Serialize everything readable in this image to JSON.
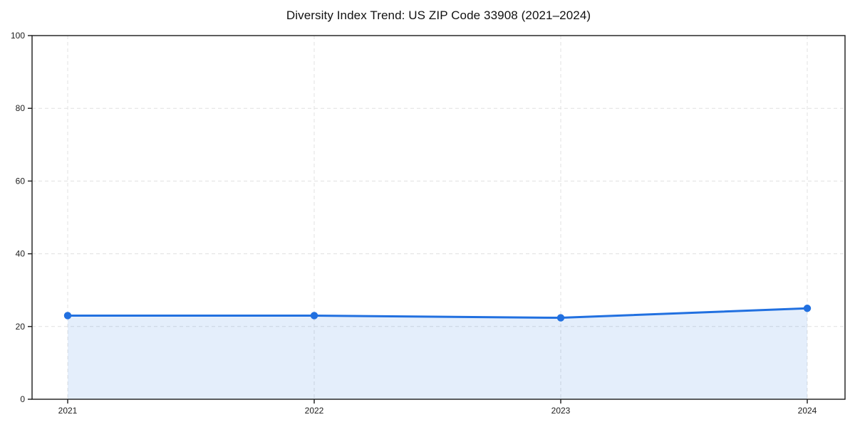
{
  "chart_data": {
    "type": "area",
    "title": "Diversity Index Trend: US ZIP Code 33908 (2021–2024)",
    "x": [
      2021,
      2022,
      2023,
      2024
    ],
    "values": [
      23,
      23,
      22.4,
      25
    ],
    "xlabel": "",
    "ylabel": "",
    "ylim": [
      0,
      100
    ],
    "yticks": [
      0,
      20,
      40,
      60,
      80,
      100
    ],
    "xticks": [
      2021,
      2022,
      2023,
      2024
    ],
    "grid": true,
    "grid_style": "dashed",
    "legend": false,
    "marker": "circle",
    "colors": {
      "line": "#2170e0",
      "marker": "#2170e0",
      "fill": "rgba(33,112,224,0.12)",
      "grid": "#e0e0e0",
      "axis": "#1a1a1a",
      "tick_text": "#1c1c1c",
      "background": "#ffffff"
    }
  }
}
